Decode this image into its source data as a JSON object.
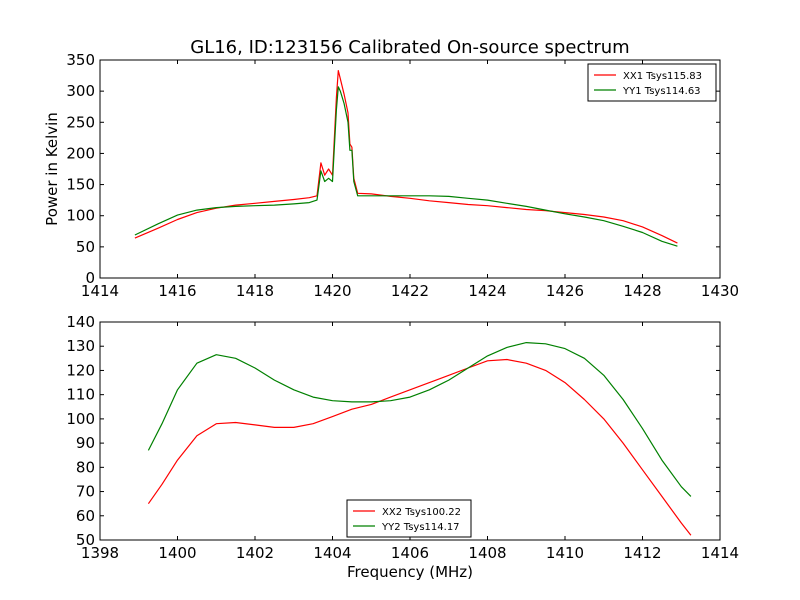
{
  "title": "GL16, ID:123156 Calibrated On-source spectrum",
  "colors": {
    "red": "#ff0000",
    "green": "#008000"
  },
  "chart_data": [
    {
      "type": "line",
      "title": "GL16, ID:123156 Calibrated On-source spectrum",
      "xlabel": "",
      "ylabel": "Power in Kelvin",
      "xlim": [
        1414,
        1430
      ],
      "ylim": [
        0,
        350
      ],
      "xticks": [
        1414,
        1416,
        1418,
        1420,
        1422,
        1424,
        1426,
        1428,
        1430
      ],
      "yticks": [
        0,
        50,
        100,
        150,
        200,
        250,
        300,
        350
      ],
      "grid": false,
      "legend_position": "top-right",
      "series": [
        {
          "name": "XX1 Tsys115.83",
          "color": "#ff0000",
          "x": [
            1414.9,
            1415.5,
            1416.0,
            1416.5,
            1417.0,
            1417.5,
            1418.0,
            1418.5,
            1419.0,
            1419.4,
            1419.6,
            1419.7,
            1419.8,
            1419.9,
            1420.0,
            1420.1,
            1420.15,
            1420.2,
            1420.3,
            1420.4,
            1420.45,
            1420.5,
            1420.55,
            1420.65,
            1421.0,
            1421.5,
            1422.0,
            1422.5,
            1423.0,
            1423.5,
            1424.0,
            1424.5,
            1425.0,
            1425.5,
            1426.0,
            1426.5,
            1427.0,
            1427.5,
            1428.0,
            1428.5,
            1428.9
          ],
          "y": [
            64,
            80,
            94,
            105,
            112,
            117,
            120,
            123,
            126,
            129,
            132,
            185,
            165,
            175,
            165,
            290,
            333,
            320,
            295,
            265,
            215,
            210,
            160,
            136,
            135,
            131,
            128,
            124,
            121,
            118,
            116,
            113,
            110,
            108,
            105,
            102,
            98,
            92,
            82,
            68,
            56
          ]
        },
        {
          "name": "YY1 Tsys114.63",
          "color": "#008000",
          "x": [
            1414.9,
            1415.5,
            1416.0,
            1416.5,
            1417.0,
            1417.5,
            1418.0,
            1418.5,
            1419.0,
            1419.4,
            1419.6,
            1419.7,
            1419.8,
            1419.9,
            1420.0,
            1420.1,
            1420.15,
            1420.2,
            1420.3,
            1420.4,
            1420.45,
            1420.5,
            1420.55,
            1420.65,
            1421.0,
            1421.5,
            1422.0,
            1422.5,
            1423.0,
            1423.5,
            1424.0,
            1424.5,
            1425.0,
            1425.5,
            1426.0,
            1426.5,
            1427.0,
            1427.5,
            1428.0,
            1428.5,
            1428.9
          ],
          "y": [
            69,
            87,
            101,
            109,
            113,
            115,
            116,
            117,
            119,
            121,
            125,
            172,
            155,
            160,
            155,
            270,
            307,
            300,
            280,
            250,
            205,
            205,
            155,
            132,
            132,
            132,
            132,
            132,
            131,
            128,
            125,
            120,
            115,
            109,
            103,
            98,
            92,
            83,
            73,
            59,
            51
          ]
        }
      ]
    },
    {
      "type": "line",
      "title": "",
      "xlabel": "Frequency (MHz)",
      "ylabel": "",
      "xlim": [
        1398,
        1414
      ],
      "ylim": [
        50,
        140
      ],
      "xticks": [
        1398,
        1400,
        1402,
        1404,
        1406,
        1408,
        1410,
        1412,
        1414
      ],
      "yticks": [
        50,
        60,
        70,
        80,
        90,
        100,
        110,
        120,
        130,
        140
      ],
      "grid": false,
      "legend_position": "bottom-center",
      "series": [
        {
          "name": "XX2 Tsys100.22",
          "color": "#ff0000",
          "x": [
            1399.25,
            1399.6,
            1400.0,
            1400.5,
            1401.0,
            1401.5,
            1402.0,
            1402.5,
            1403.0,
            1403.5,
            1404.0,
            1404.5,
            1405.0,
            1405.5,
            1406.0,
            1406.5,
            1407.0,
            1407.5,
            1408.0,
            1408.5,
            1409.0,
            1409.5,
            1410.0,
            1410.5,
            1411.0,
            1411.5,
            1412.0,
            1412.5,
            1413.0,
            1413.25
          ],
          "y": [
            65,
            73,
            83,
            93,
            98,
            98.5,
            97.5,
            96.5,
            96.5,
            98,
            101,
            104,
            106,
            109,
            112,
            115,
            118,
            121,
            124,
            124.5,
            123,
            120,
            115,
            108,
            100,
            90,
            79,
            68,
            57,
            52
          ]
        },
        {
          "name": "YY2 Tsys114.17",
          "color": "#008000",
          "x": [
            1399.25,
            1399.6,
            1400.0,
            1400.5,
            1401.0,
            1401.5,
            1402.0,
            1402.5,
            1403.0,
            1403.5,
            1404.0,
            1404.5,
            1405.0,
            1405.5,
            1406.0,
            1406.5,
            1407.0,
            1407.5,
            1408.0,
            1408.5,
            1409.0,
            1409.5,
            1410.0,
            1410.5,
            1411.0,
            1411.5,
            1412.0,
            1412.5,
            1413.0,
            1413.25
          ],
          "y": [
            87,
            98,
            112,
            123,
            126.5,
            125,
            121,
            116,
            112,
            109,
            107.5,
            107,
            107,
            107.5,
            109,
            112,
            116,
            121,
            126,
            129.5,
            131.5,
            131,
            129,
            125,
            118,
            108,
            96,
            83,
            72,
            68
          ]
        }
      ]
    }
  ]
}
